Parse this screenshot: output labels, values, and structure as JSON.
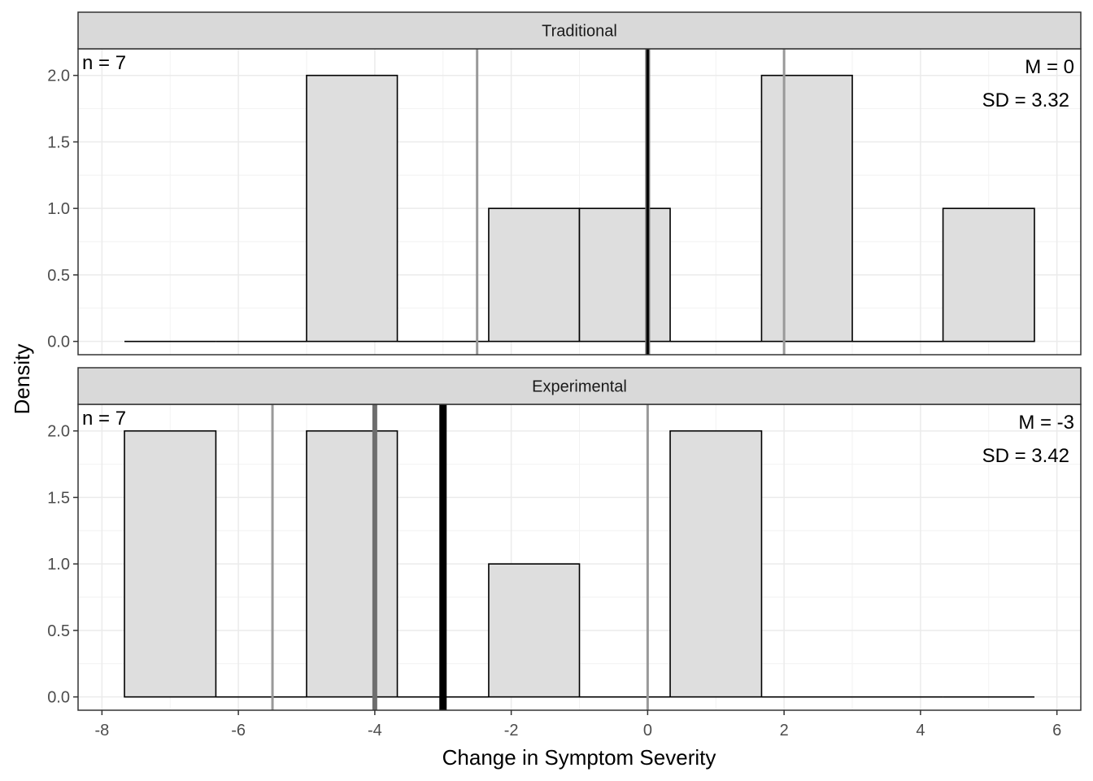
{
  "chart_data": {
    "type": "histogram",
    "xlabel": "Change in Symptom Severity",
    "ylabel": "Density",
    "xlim": [
      -8.35,
      6.35
    ],
    "ylim": [
      -0.1,
      2.2
    ],
    "xticks": [
      -8,
      -6,
      -4,
      -2,
      0,
      2,
      4,
      6
    ],
    "yticks": [
      0.0,
      0.5,
      1.0,
      1.5,
      2.0
    ],
    "ytick_labels": [
      "0.0",
      "0.5",
      "1.0",
      "1.5",
      "2.0"
    ],
    "grid": true,
    "bins": {
      "edges": [
        -7.67,
        -6.33,
        -5.0,
        -3.67,
        -2.33,
        -1.0,
        0.33,
        1.67,
        3.0,
        4.33,
        5.67
      ]
    },
    "panels": [
      {
        "name": "Traditional",
        "n_label": "n = 7",
        "mean_label": "M = 0",
        "sd_label": "SD = 3.32",
        "densities": [
          0,
          0,
          2,
          0,
          1,
          1,
          0,
          2,
          0,
          1
        ],
        "mean": 0,
        "median": 0,
        "quartiles": [
          -2.5,
          2
        ]
      },
      {
        "name": "Experimental",
        "n_label": "n = 7",
        "mean_label": "M = -3",
        "sd_label": "SD = 3.42",
        "densities": [
          2,
          0,
          2,
          0,
          1,
          0,
          2,
          0,
          0,
          0
        ],
        "mean": -3,
        "median": -4,
        "quartiles": [
          -5.5,
          0
        ]
      }
    ],
    "line_colors": {
      "mean": "#000000",
      "median": "#6e6e6e",
      "quartile": "#999999"
    },
    "bar_fill": "#dedede",
    "strip_fill": "#d9d9d9"
  }
}
